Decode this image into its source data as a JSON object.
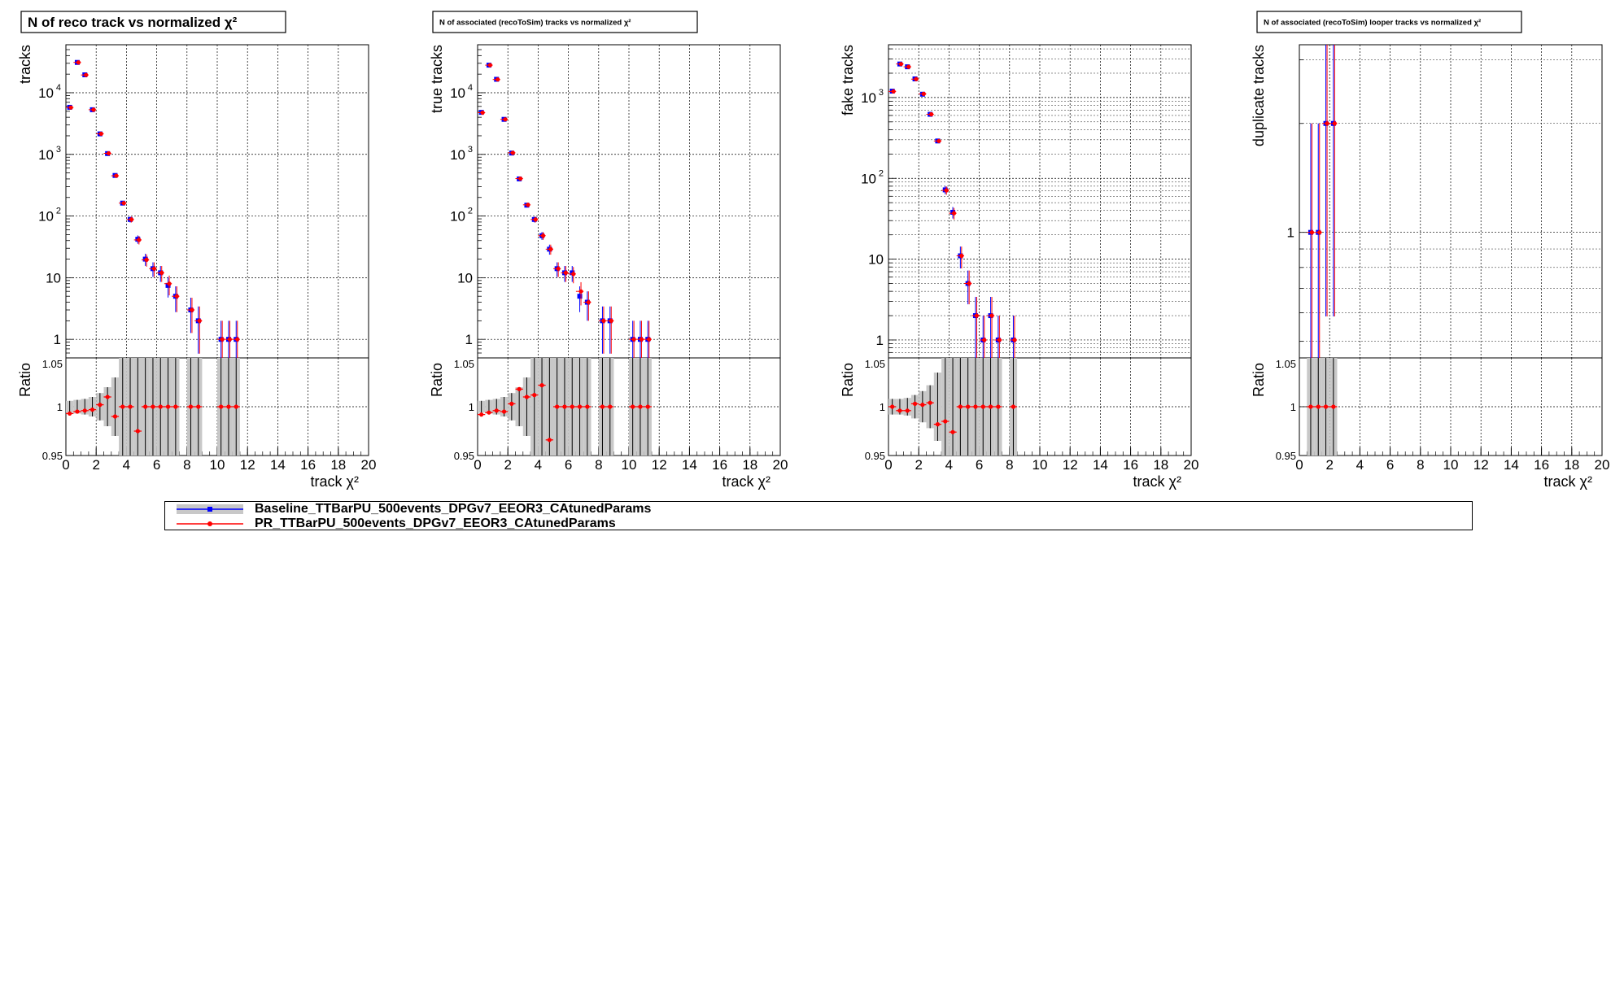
{
  "colors": {
    "baseline": "#0000ff",
    "pr": "#ff0000",
    "band": "#c8c8c8",
    "grid": "#000000"
  },
  "legend": {
    "baseline_label": "Baseline_TTBarPU_500events_DPGv7_EEOR3_CAtunedParams",
    "pr_label": "PR_TTBarPU_500events_DPGv7_EEOR3_CAtunedParams"
  },
  "chart_data": [
    {
      "type": "scatter",
      "title": "N of reco track vs normalized  χ²",
      "xlabel": "track   χ²",
      "ylabel": "tracks",
      "ratio_ylabel": "Ratio",
      "xlim": [
        0,
        20
      ],
      "xticks": [
        "0",
        "2",
        "4",
        "6",
        "8",
        "10",
        "12",
        "14",
        "16",
        "18",
        "20"
      ],
      "ylog": true,
      "ylim": [
        0.5,
        60000
      ],
      "yticks": [
        {
          "v": 1,
          "t": "1"
        },
        {
          "v": 10,
          "t": "10"
        },
        {
          "v": 100,
          "t": "10",
          "e": "2"
        },
        {
          "v": 1000,
          "t": "10",
          "e": "3"
        },
        {
          "v": 10000,
          "t": "10",
          "e": "4"
        }
      ],
      "ratio_ylim": [
        0.95,
        1.05
      ],
      "ratio_yticks": [
        "0.95",
        "1",
        "1.05"
      ],
      "x": [
        0.25,
        0.75,
        1.25,
        1.75,
        2.25,
        2.75,
        3.25,
        3.75,
        4.25,
        4.75,
        5.25,
        5.75,
        6.25,
        6.75,
        7.25,
        8.25,
        8.75,
        10.25,
        10.75,
        11.25
      ],
      "series": [
        {
          "name": "Baseline_TTBarPU_500events_DPGv7_EEOR3_CAtunedParams",
          "values": [
            5800,
            31000,
            19500,
            5300,
            2150,
            1030,
            455,
            162,
            88,
            42,
            20,
            14,
            12,
            7.5,
            5,
            3,
            2,
            1,
            1,
            1
          ]
        },
        {
          "name": "PR_TTBarPU_500events_DPGv7_EEOR3_CAtunedParams",
          "values": [
            5750,
            31000,
            19400,
            5300,
            2160,
            1040,
            450,
            162,
            88,
            41,
            19.5,
            14,
            12,
            8,
            5,
            3,
            2,
            1,
            1,
            1
          ]
        }
      ],
      "ratio": [
        0.993,
        0.995,
        0.996,
        0.997,
        1.002,
        1.01,
        0.99,
        1.0,
        1.0,
        0.975,
        1.0,
        1.0,
        1.0,
        1.0,
        1.0,
        1.0,
        1.0,
        1.0,
        1.0,
        1.0
      ],
      "ratio_band": [
        0.006,
        0.007,
        0.008,
        0.01,
        0.014,
        0.02,
        0.03,
        0.05,
        0.06,
        0.06,
        0.06,
        0.06,
        0.06,
        0.06,
        0.06,
        0.06,
        0.06,
        0.06,
        0.06,
        0.06
      ]
    },
    {
      "type": "scatter",
      "title": "N of associated (recoToSim) tracks vs normalized        χ²",
      "xlabel": "track   χ²",
      "ylabel": "true tracks",
      "ratio_ylabel": "Ratio",
      "xlim": [
        0,
        20
      ],
      "xticks": [
        "0",
        "2",
        "4",
        "6",
        "8",
        "10",
        "12",
        "14",
        "16",
        "18",
        "20"
      ],
      "ylog": true,
      "ylim": [
        0.5,
        60000
      ],
      "yticks": [
        {
          "v": 1,
          "t": "1"
        },
        {
          "v": 10,
          "t": "10"
        },
        {
          "v": 100,
          "t": "10",
          "e": "2"
        },
        {
          "v": 1000,
          "t": "10",
          "e": "3"
        },
        {
          "v": 10000,
          "t": "10",
          "e": "4"
        }
      ],
      "ratio_ylim": [
        0.95,
        1.05
      ],
      "ratio_yticks": [
        "0.95",
        "1",
        "1.05"
      ],
      "x": [
        0.25,
        0.75,
        1.25,
        1.75,
        2.25,
        2.75,
        3.25,
        3.75,
        4.25,
        4.75,
        5.25,
        5.75,
        6.25,
        6.75,
        7.25,
        8.25,
        8.75,
        10.25,
        10.75,
        11.25
      ],
      "series": [
        {
          "name": "Baseline_TTBarPU_500events_DPGv7_EEOR3_CAtunedParams",
          "values": [
            4800,
            28000,
            16500,
            3700,
            1050,
            400,
            150,
            88,
            48,
            29,
            14,
            12,
            12,
            5,
            4,
            2,
            2,
            1,
            1,
            1
          ]
        },
        {
          "name": "PR_TTBarPU_500events_DPGv7_EEOR3_CAtunedParams",
          "values": [
            4750,
            28000,
            16400,
            3700,
            1060,
            405,
            152,
            88,
            48,
            29,
            14,
            12,
            11.5,
            6,
            4,
            2,
            2,
            1,
            1,
            1
          ]
        }
      ],
      "ratio": [
        0.992,
        0.994,
        0.996,
        0.995,
        1.003,
        1.018,
        1.01,
        1.012,
        1.022,
        0.966,
        1.0,
        1.0,
        1.0,
        1.0,
        1.0,
        1.0,
        1.0,
        1.0,
        1.0,
        1.0
      ],
      "ratio_band": [
        0.006,
        0.007,
        0.008,
        0.01,
        0.014,
        0.02,
        0.03,
        0.05,
        0.06,
        0.06,
        0.06,
        0.06,
        0.06,
        0.06,
        0.06,
        0.06,
        0.06,
        0.06,
        0.06,
        0.06
      ]
    },
    {
      "type": "scatter",
      "title": "",
      "xlabel": "track   χ²",
      "ylabel": "fake tracks",
      "ratio_ylabel": "Ratio",
      "xlim": [
        0,
        20
      ],
      "xticks": [
        "0",
        "2",
        "4",
        "6",
        "8",
        "10",
        "12",
        "14",
        "16",
        "18",
        "20"
      ],
      "ylog": true,
      "ylim": [
        0.6,
        4500
      ],
      "yticks": [
        {
          "v": 1,
          "t": "1"
        },
        {
          "v": 10,
          "t": "10"
        },
        {
          "v": 100,
          "t": "10",
          "e": "2"
        },
        {
          "v": 1000,
          "t": "10",
          "e": "3"
        }
      ],
      "ratio_ylim": [
        0.95,
        1.05
      ],
      "ratio_yticks": [
        "0.95",
        "1",
        "1.05"
      ],
      "x": [
        0.25,
        0.75,
        1.25,
        1.75,
        2.25,
        2.75,
        3.25,
        3.75,
        4.25,
        4.75,
        5.25,
        5.75,
        6.25,
        6.75,
        7.25,
        8.25
      ],
      "series": [
        {
          "name": "Baseline_TTBarPU_500events_DPGv7_EEOR3_CAtunedParams",
          "values": [
            1200,
            2600,
            2400,
            1700,
            1100,
            620,
            290,
            72,
            38,
            11,
            5,
            2,
            1,
            2,
            1,
            1
          ]
        },
        {
          "name": "PR_TTBarPU_500events_DPGv7_EEOR3_CAtunedParams",
          "values": [
            1190,
            2600,
            2400,
            1690,
            1110,
            620,
            290,
            71,
            37,
            11,
            5,
            2,
            1,
            2,
            1,
            1
          ]
        }
      ],
      "ratio": [
        1.0,
        0.996,
        0.996,
        1.003,
        1.002,
        1.004,
        0.982,
        0.985,
        0.974,
        1.0,
        1.0,
        1.0,
        1.0,
        1.0,
        1.0,
        1.0
      ],
      "ratio_band": [
        0.008,
        0.008,
        0.009,
        0.012,
        0.016,
        0.022,
        0.035,
        0.06,
        0.06,
        0.06,
        0.06,
        0.06,
        0.06,
        0.06,
        0.06,
        0.06
      ]
    },
    {
      "type": "scatter",
      "title": "N of associated (recoToSim) looper tracks vs normalized   χ²",
      "xlabel": "track   χ²",
      "ylabel": "duplicate tracks",
      "ratio_ylabel": "Ratio",
      "xlim": [
        0,
        20
      ],
      "xticks": [
        "0",
        "2",
        "4",
        "6",
        "8",
        "10",
        "12",
        "14",
        "16",
        "18",
        "20"
      ],
      "ylog": true,
      "ylim": [
        0.45,
        3.3
      ],
      "yticks": [
        {
          "v": 1,
          "t": "1"
        }
      ],
      "ratio_ylim": [
        0.95,
        1.05
      ],
      "ratio_yticks": [
        "0.95",
        "1",
        "1.05"
      ],
      "x": [
        0.75,
        1.25,
        1.75,
        2.25
      ],
      "series": [
        {
          "name": "Baseline_TTBarPU_500events_DPGv7_EEOR3_CAtunedParams",
          "values": [
            1,
            1,
            2,
            2
          ]
        },
        {
          "name": "PR_TTBarPU_500events_DPGv7_EEOR3_CAtunedParams",
          "values": [
            1,
            1,
            2,
            2
          ]
        }
      ],
      "ratio": [
        1.0,
        1.0,
        1.0,
        1.0
      ],
      "ratio_band": [
        0.06,
        0.06,
        0.06,
        0.06
      ]
    }
  ]
}
